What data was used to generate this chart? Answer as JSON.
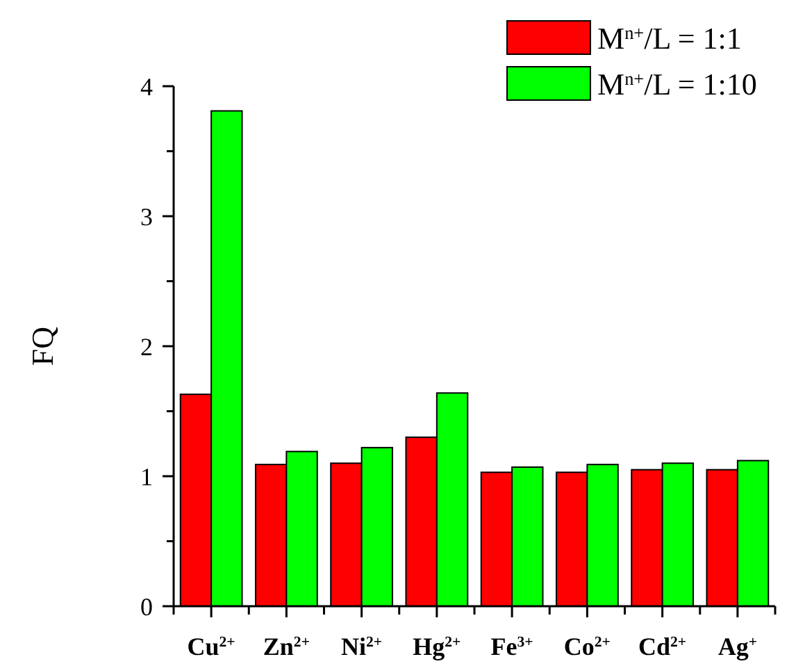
{
  "chart_data": {
    "type": "bar",
    "ylabel": "FQ",
    "categories": [
      "Cu$^{2+}$",
      "Zn$^{2+}$",
      "Ni$^{2+}$",
      "Hg$^{2+}$",
      "Fe$^{3+}$",
      "Co$^{2+}$",
      "Cd$^{2+}$",
      "Ag$^{+}$"
    ],
    "series": [
      {
        "name": "M$^{n+}$/L = 1:1",
        "color": "#ff0000",
        "values": [
          1.63,
          1.09,
          1.1,
          1.3,
          1.03,
          1.03,
          1.05,
          1.05
        ]
      },
      {
        "name": "M$^{n+}$/L = 1:10",
        "color": "#00ff00",
        "values": [
          3.81,
          1.19,
          1.22,
          1.64,
          1.07,
          1.09,
          1.1,
          1.12
        ]
      }
    ],
    "ylim": [
      0,
      4
    ],
    "yticks": [
      0,
      {
        "value": 0.5,
        "label": null
      },
      1,
      {
        "value": 1.5,
        "label": null
      },
      2,
      {
        "value": 2.5,
        "label": null
      },
      3,
      {
        "value": 3.5,
        "label": null
      },
      4
    ],
    "grid": false,
    "legend": "top right"
  }
}
